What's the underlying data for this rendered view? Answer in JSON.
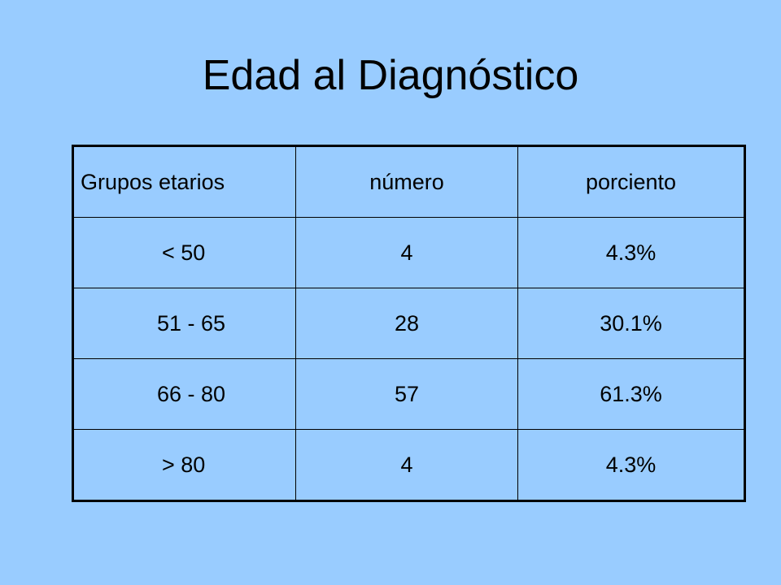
{
  "title": "Edad al Diagnóstico",
  "colors": {
    "background": "#99ccff",
    "text": "#000000",
    "table_border": "#000000"
  },
  "table": {
    "headers": [
      "Grupos etarios",
      "número",
      "porciento"
    ],
    "rows": [
      {
        "group": "< 50",
        "count": "4",
        "percent": "4.3%"
      },
      {
        "group": "51 - 65",
        "count": "28",
        "percent": "30.1%"
      },
      {
        "group": "66 - 80",
        "count": "57",
        "percent": "61.3%"
      },
      {
        "group": "> 80",
        "count": "4",
        "percent": "4.3%"
      }
    ]
  }
}
